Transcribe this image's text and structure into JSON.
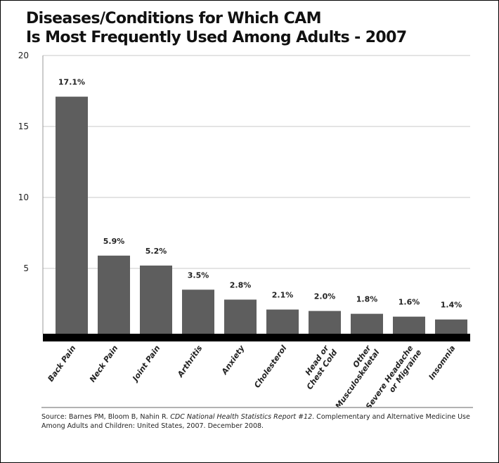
{
  "chart_data": {
    "type": "bar",
    "title": "Diseases/Conditions for Which CAM Is Most Frequently Used Among Adults - 2007",
    "title_lines": [
      "Diseases/Conditions for Which CAM",
      "Is Most Frequently Used Among Adults - 2007"
    ],
    "xlabel": "",
    "ylabel": "",
    "ylim": [
      0,
      20
    ],
    "yticks": [
      5,
      10,
      15,
      20
    ],
    "grid": true,
    "categories": [
      [
        "Back Pain"
      ],
      [
        "Neck Pain"
      ],
      [
        "Joint Pain"
      ],
      [
        "Arthritis"
      ],
      [
        "Anxiety"
      ],
      [
        "Cholesterol"
      ],
      [
        "Head or",
        "Chest Cold"
      ],
      [
        "Other",
        "Musculoskeletal"
      ],
      [
        "Severe Headache",
        "or Migraine"
      ],
      [
        "Insomnia"
      ]
    ],
    "values": [
      17.1,
      5.9,
      5.2,
      3.5,
      2.8,
      2.1,
      2.0,
      1.8,
      1.6,
      1.4
    ],
    "data_labels": [
      "17.1%",
      "5.9%",
      "5.2%",
      "3.5%",
      "2.8%",
      "2.1%",
      "2.0%",
      "1.8%",
      "1.6%",
      "1.4%"
    ],
    "bar_color": "#5e5e5e"
  },
  "source": {
    "prefix": "Source: Barnes PM, Bloom B, Nahin R. ",
    "italic": "CDC National Health Statistics Report #12",
    "suffix": ". Complementary and Alternative Medicine Use Among Adults and Children: United States, 2007. December 2008."
  }
}
